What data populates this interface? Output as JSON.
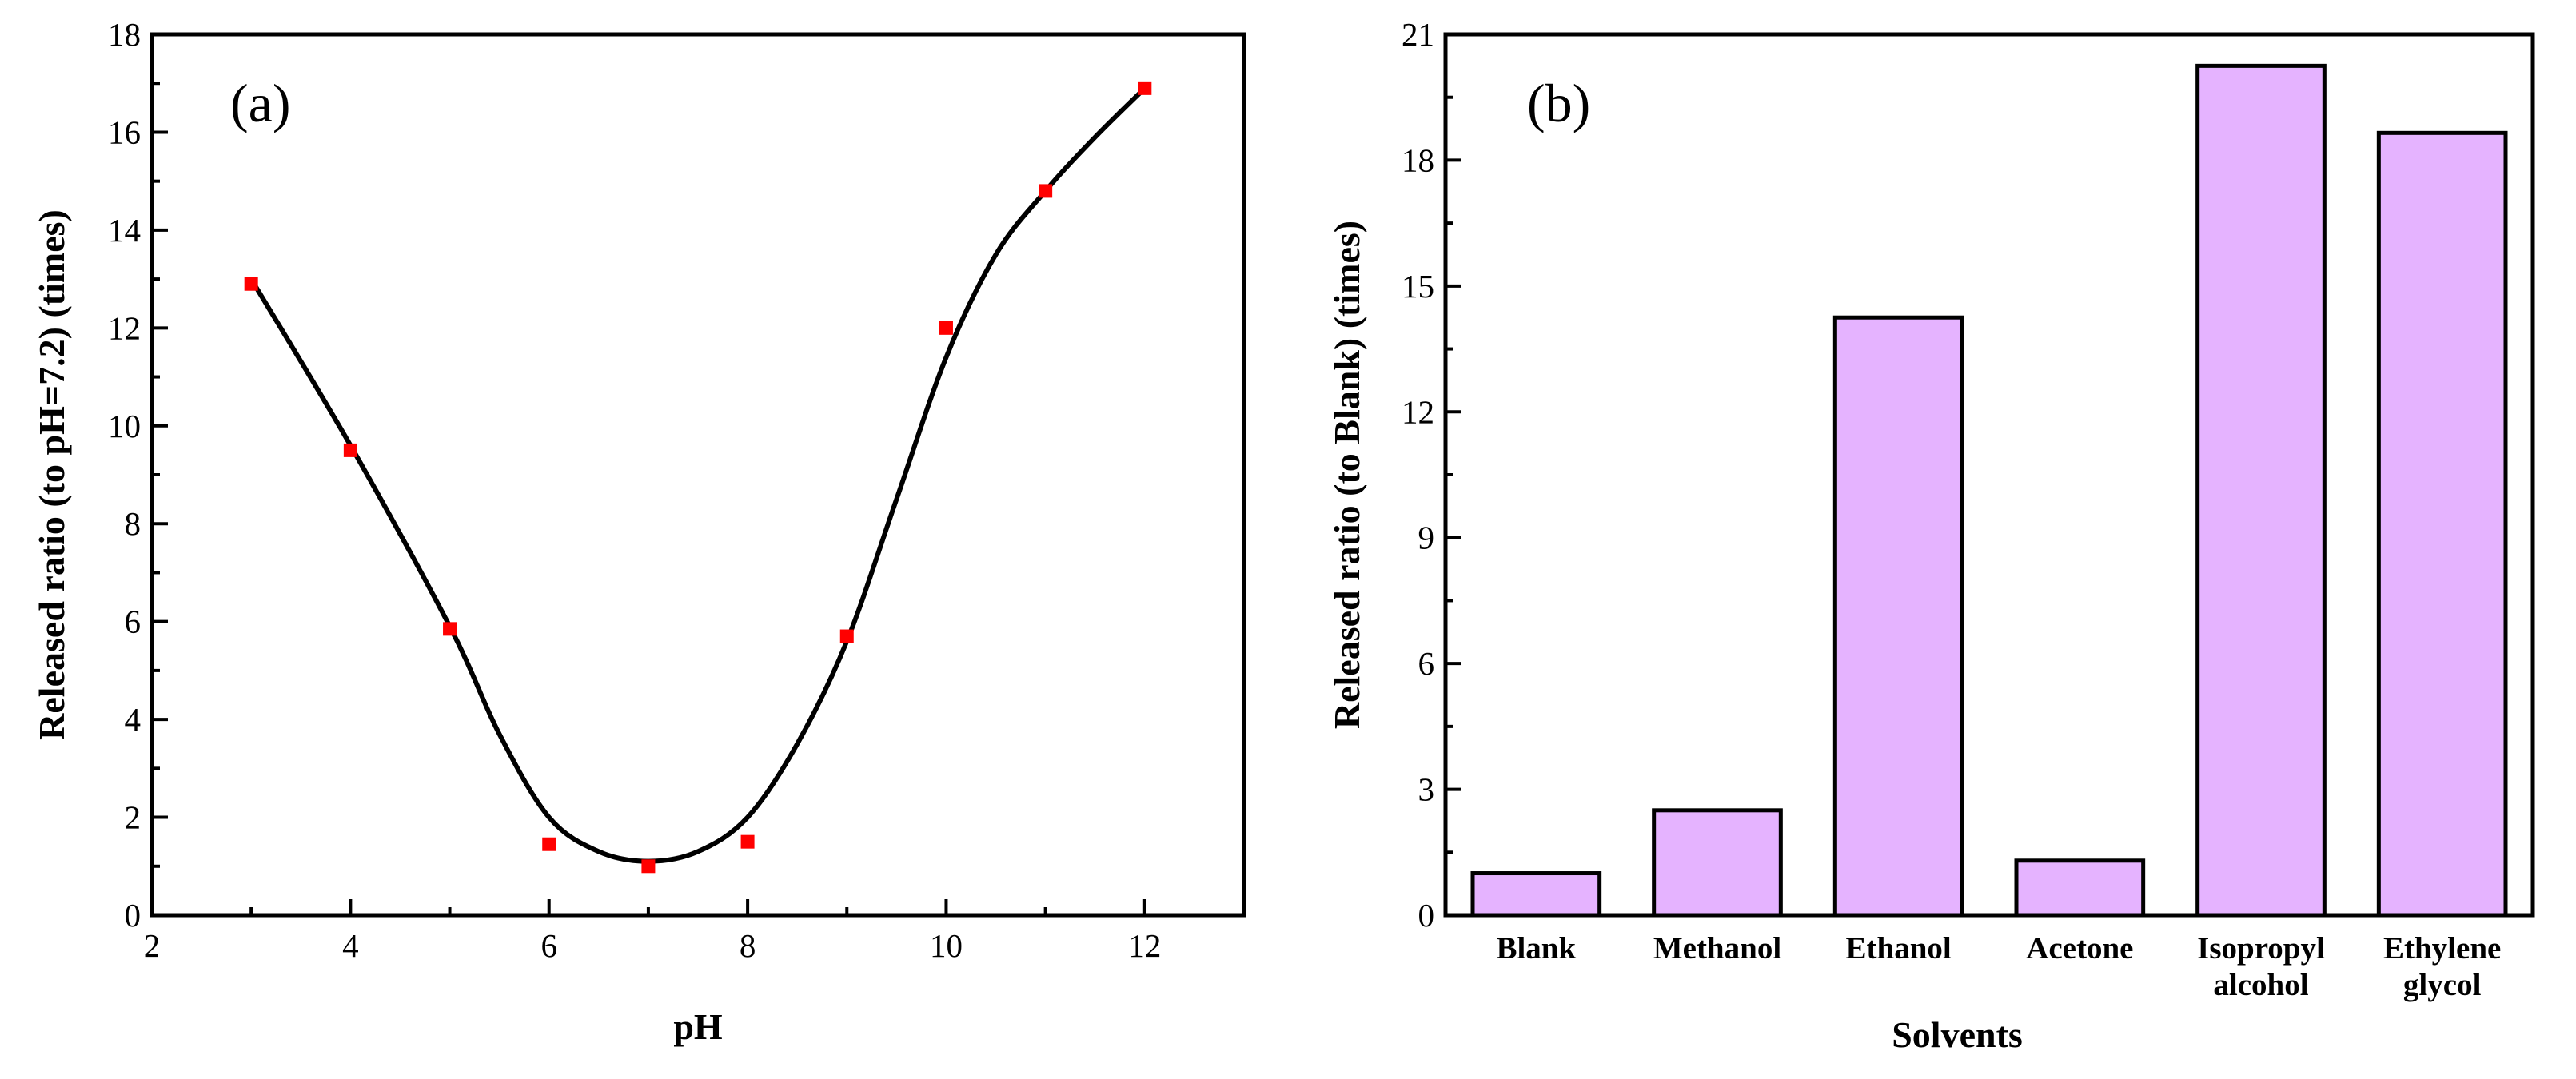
{
  "chart_data": [
    {
      "type": "scatter",
      "panel_label": "(a)",
      "xlabel": "pH",
      "ylabel": "Released ratio  (to pH=7.2) (times)",
      "xlim": [
        2,
        13
      ],
      "ylim": [
        0,
        18
      ],
      "x_ticks": [
        2,
        4,
        6,
        8,
        10,
        12
      ],
      "y_ticks": [
        0,
        2,
        4,
        6,
        8,
        10,
        12,
        14,
        16,
        18
      ],
      "x_minor_step": 1,
      "y_minor_step": 1,
      "series": [
        {
          "name": "measured",
          "marker": "square",
          "color": "#ff0000",
          "x": [
            3,
            4,
            5,
            6,
            7,
            8,
            9,
            10,
            11,
            12
          ],
          "y": [
            12.9,
            9.5,
            5.85,
            1.45,
            1.0,
            1.5,
            5.7,
            12.0,
            14.8,
            16.9
          ]
        },
        {
          "name": "fit",
          "style": "line",
          "color": "#000000",
          "x": [
            3,
            4,
            5,
            5.5,
            6,
            6.5,
            7,
            7.5,
            8,
            8.5,
            9,
            9.5,
            10,
            10.5,
            11,
            11.5,
            12
          ],
          "y": [
            13.0,
            9.6,
            5.9,
            3.7,
            2.0,
            1.3,
            1.1,
            1.3,
            2.0,
            3.5,
            5.6,
            8.5,
            11.4,
            13.5,
            14.8,
            15.9,
            16.9
          ]
        }
      ]
    },
    {
      "type": "bar",
      "panel_label": "(b)",
      "xlabel": "Solvents",
      "ylabel": "Released ratio (to Blank) (times)",
      "categories": [
        "Blank",
        "Methanol",
        "Ethanol",
        "Acetone",
        "Isopropyl alcohol",
        "Ethylene glycol"
      ],
      "category_lines": [
        [
          "Blank"
        ],
        [
          "Methanol"
        ],
        [
          "Ethanol"
        ],
        [
          "Acetone"
        ],
        [
          "Isopropyl",
          "alcohol"
        ],
        [
          "Ethylene",
          "glycol"
        ]
      ],
      "values": [
        1.0,
        2.5,
        14.25,
        1.3,
        20.25,
        18.65
      ],
      "ylim": [
        0,
        21
      ],
      "y_ticks": [
        0,
        3,
        6,
        9,
        12,
        15,
        18,
        21
      ],
      "y_minor_step": 1.5,
      "bar_color": "#e5b3ff",
      "edge_color": "#000000"
    }
  ]
}
